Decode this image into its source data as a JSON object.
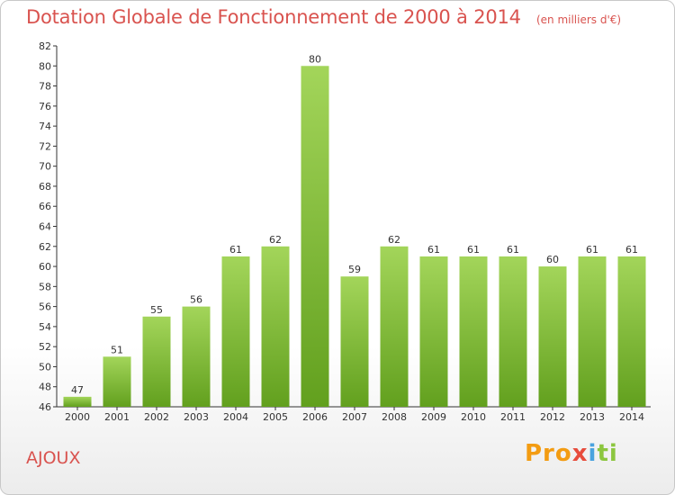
{
  "header": {
    "title": "Dotation Globale de Fonctionnement de 2000 à 2014",
    "subtitle": "(en milliers d'€)"
  },
  "footer": {
    "commune": "AJOUX",
    "logo_text": "Proxiti"
  },
  "colors": {
    "title": "#d9534f",
    "bar_light": "#a3d55a",
    "bar_dark": "#62a01e",
    "logo": [
      "#f39c12",
      "#4aa3df",
      "#e74c3c",
      "#8cc63f"
    ]
  },
  "chart_data": {
    "type": "bar",
    "title": "Dotation Globale de Fonctionnement de 2000 à 2014",
    "subtitle": "(en milliers d'€)",
    "categories": [
      "2000",
      "2001",
      "2002",
      "2003",
      "2004",
      "2005",
      "2006",
      "2007",
      "2008",
      "2009",
      "2010",
      "2011",
      "2012",
      "2013",
      "2014"
    ],
    "values": [
      47,
      51,
      55,
      56,
      61,
      62,
      80,
      59,
      62,
      61,
      61,
      61,
      60,
      61,
      61
    ],
    "ylim": [
      46,
      82
    ],
    "yticks": [
      46,
      48,
      50,
      52,
      54,
      56,
      58,
      60,
      62,
      64,
      66,
      68,
      70,
      72,
      74,
      76,
      78,
      80,
      82
    ],
    "grid": false,
    "data_labels": true
  }
}
